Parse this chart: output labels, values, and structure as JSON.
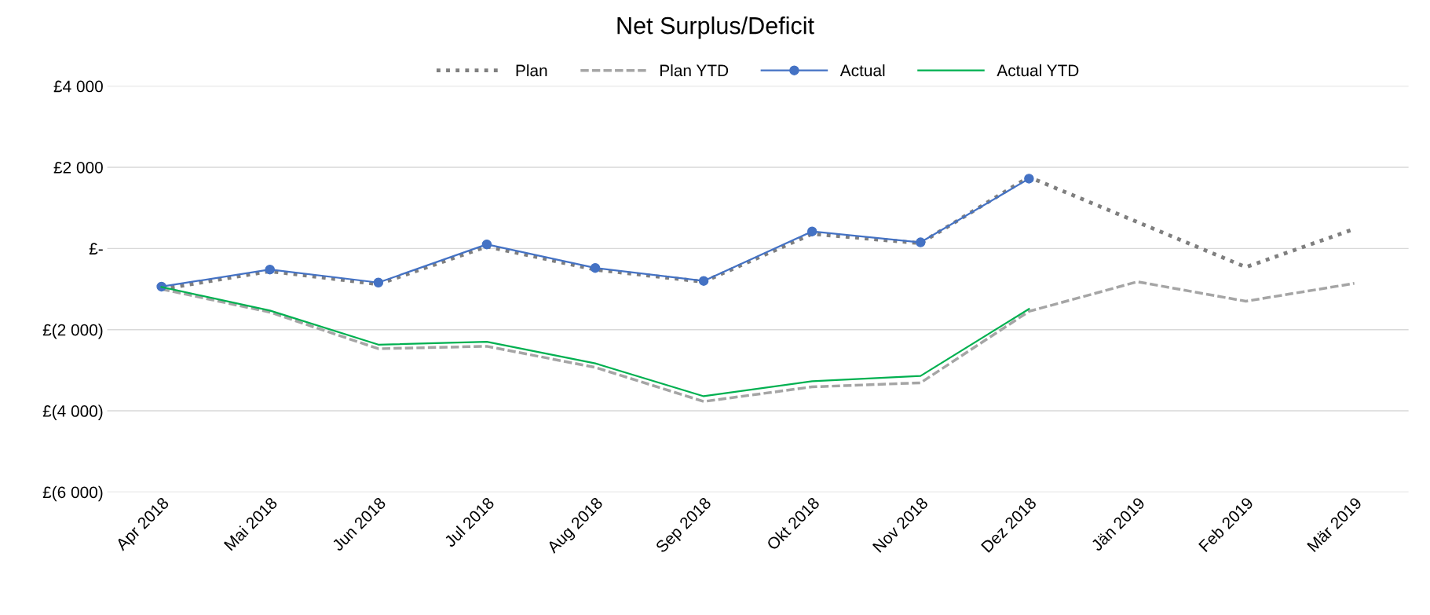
{
  "chart_data": {
    "type": "line",
    "title": "Net Surplus/Deficit",
    "categories": [
      "Apr 2018",
      "Mai 2018",
      "Jun 2018",
      "Jul 2018",
      "Aug 2018",
      "Sep 2018",
      "Okt 2018",
      "Nov 2018",
      "Dez 2018",
      "Jän 2019",
      "Feb 2019",
      "Mär 2019"
    ],
    "series": [
      {
        "name": "Plan",
        "color": "#7f7f7f",
        "line_style": "dotted",
        "marker": "none",
        "values": [
          -1000,
          -560,
          -880,
          50,
          -520,
          -820,
          360,
          130,
          1760,
          650,
          -460,
          480
        ]
      },
      {
        "name": "Plan YTD",
        "color": "#a5a5a5",
        "line_style": "dashed",
        "marker": "none",
        "values": [
          -1000,
          -1570,
          -2470,
          -2410,
          -2930,
          -3770,
          -3410,
          -3310,
          -1550,
          -820,
          -1300,
          -860
        ]
      },
      {
        "name": "Actual",
        "color": "#4472c4",
        "line_style": "solid",
        "marker": "circle",
        "values": [
          -940,
          -520,
          -840,
          100,
          -480,
          -800,
          420,
          150,
          1720,
          null,
          null,
          null
        ]
      },
      {
        "name": "Actual YTD",
        "color": "#00b050",
        "line_style": "solid",
        "marker": "none",
        "values": [
          -950,
          -1530,
          -2370,
          -2300,
          -2830,
          -3640,
          -3270,
          -3140,
          -1490,
          null,
          null,
          null
        ]
      }
    ],
    "ylim": [
      -6000,
      4000
    ],
    "yticks": [
      {
        "value": -6000,
        "label": "£(6 000)"
      },
      {
        "value": -4000,
        "label": "£(4 000)"
      },
      {
        "value": -2000,
        "label": "£(2 000)"
      },
      {
        "value": 0,
        "label": "£-"
      },
      {
        "value": 2000,
        "label": "£2 000"
      },
      {
        "value": 4000,
        "label": "£4 000"
      }
    ],
    "grid": "y",
    "legend": "top"
  }
}
